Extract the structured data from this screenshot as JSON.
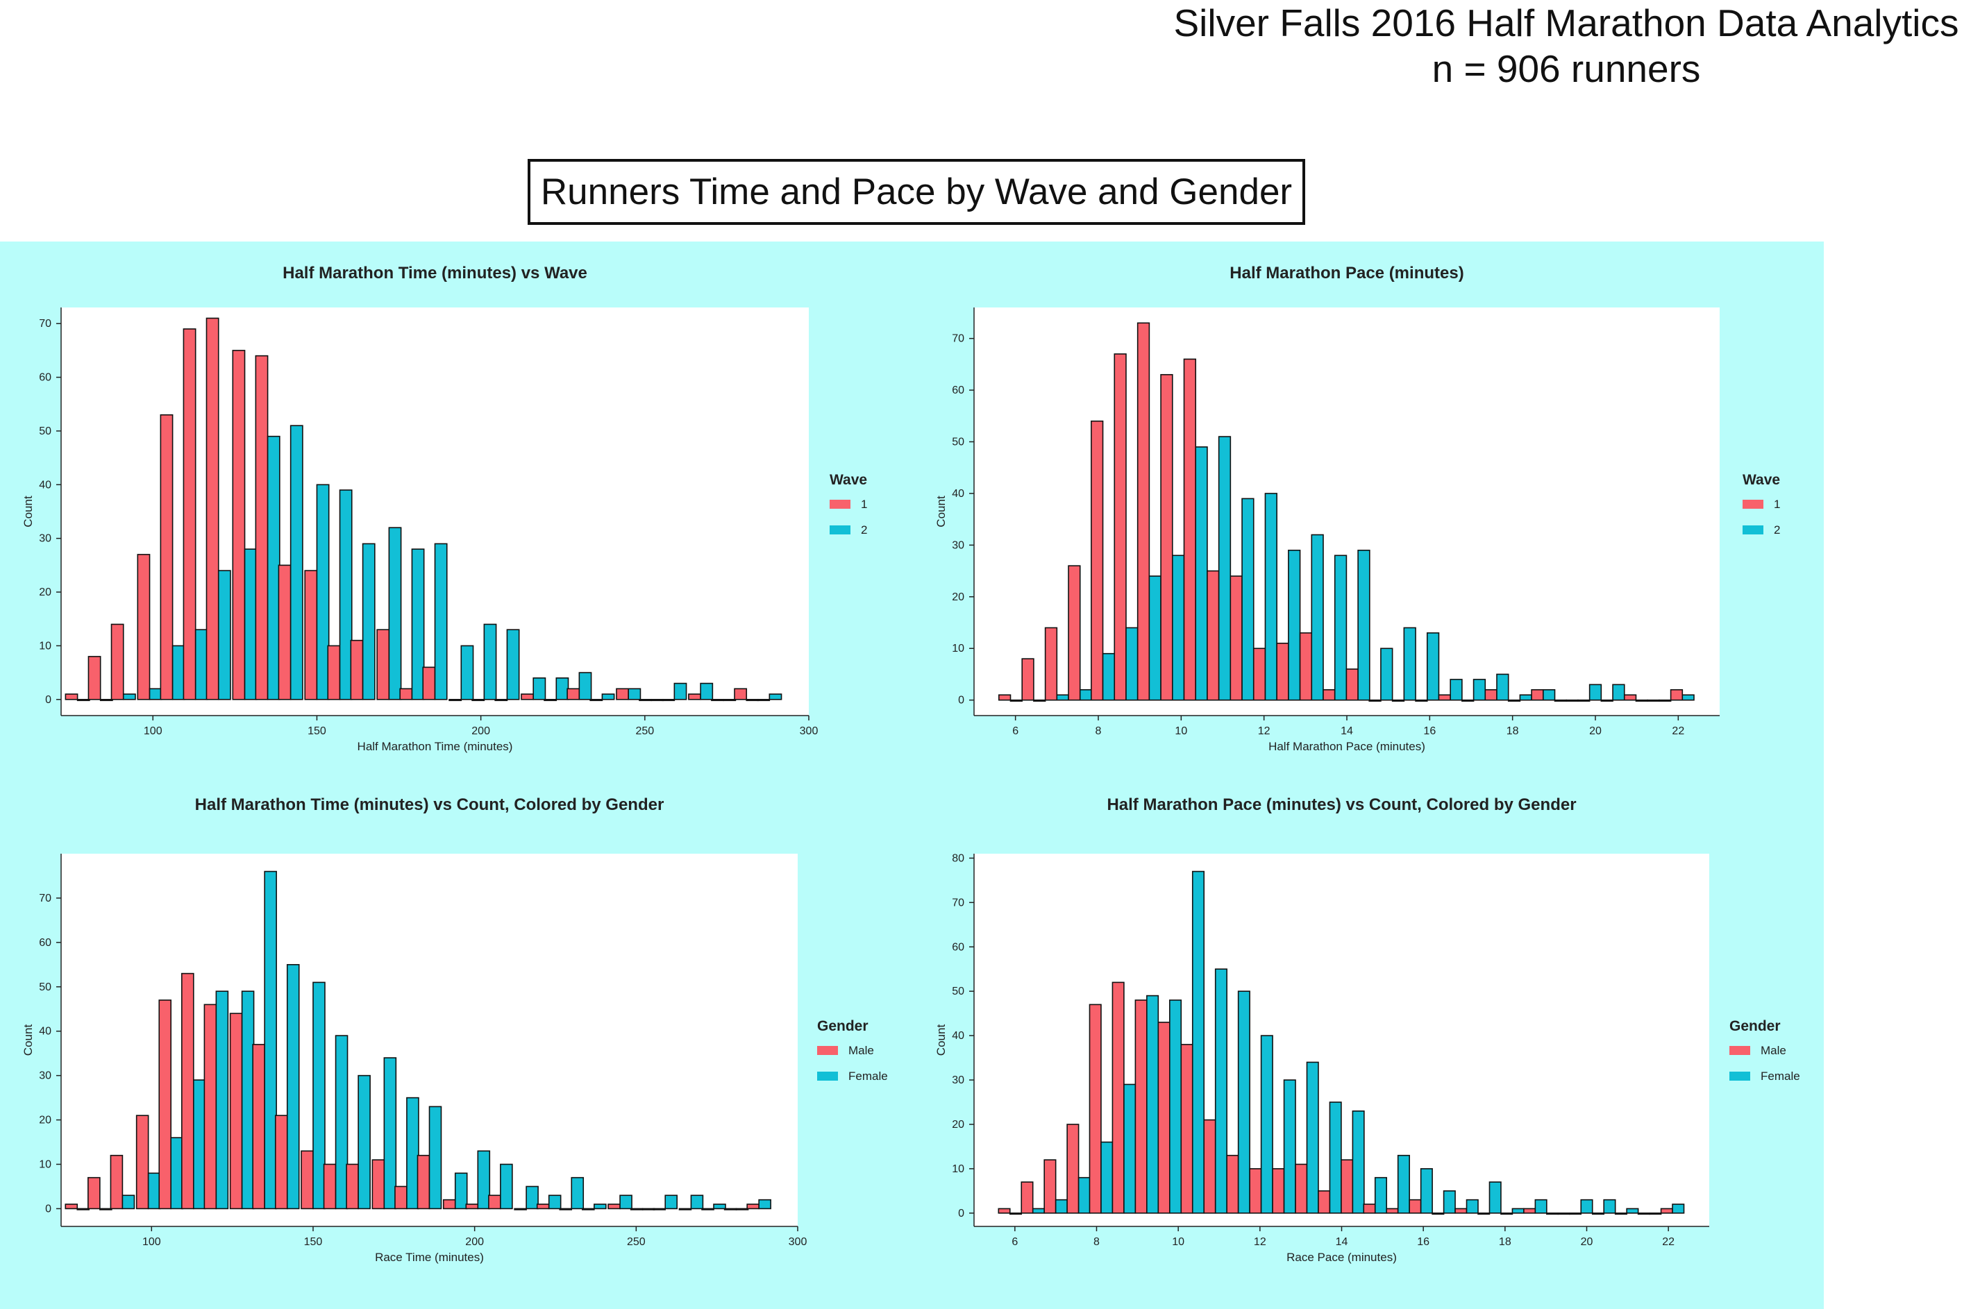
{
  "header": {
    "title": "Silver Falls 2016 Half Marathon Data Analytics",
    "subtitle": "n = 906 runners"
  },
  "section_title": "Runners Time and Pace by Wave and Gender",
  "colors": {
    "series1": "#f8616b",
    "series2": "#12bfd6",
    "panel": "#b9fdfa"
  },
  "chart_data": [
    {
      "type": "bar",
      "title": "Half Marathon Time (minutes) vs Wave",
      "xlabel": "Half Marathon Time (minutes)",
      "ylabel": "Count",
      "xlim": [
        72,
        300
      ],
      "ylim": [
        -3,
        73
      ],
      "xticks": [
        100,
        150,
        200,
        250,
        300
      ],
      "yticks": [
        0,
        10,
        20,
        30,
        40,
        50,
        60,
        70
      ],
      "bin_width": 7.3,
      "x": [
        77,
        84,
        91,
        99,
        106,
        113,
        120,
        128,
        135,
        142,
        150,
        157,
        164,
        172,
        179,
        186,
        194,
        201,
        208,
        216,
        223,
        230,
        237,
        245,
        252,
        259,
        267,
        274,
        281,
        288
      ],
      "legend_title": "Wave",
      "legend_position": "right",
      "grid": false,
      "series": [
        {
          "name": "1",
          "values": [
            1,
            8,
            14,
            27,
            53,
            69,
            71,
            65,
            64,
            25,
            24,
            10,
            11,
            13,
            2,
            6,
            0,
            0,
            0,
            1,
            0,
            2,
            0,
            2,
            0,
            0,
            1,
            0,
            2,
            0
          ]
        },
        {
          "name": "2",
          "values": [
            0,
            0,
            1,
            2,
            10,
            13,
            24,
            28,
            49,
            51,
            40,
            39,
            29,
            32,
            28,
            29,
            10,
            14,
            13,
            4,
            4,
            5,
            1,
            2,
            0,
            3,
            3,
            0,
            0,
            1
          ]
        }
      ]
    },
    {
      "type": "bar",
      "title": "Half Marathon Pace (minutes)",
      "xlabel": "Half Marathon Pace (minutes)",
      "ylabel": "Count",
      "xlim": [
        5,
        23
      ],
      "ylim": [
        -3,
        76
      ],
      "xticks": [
        6,
        8,
        10,
        12,
        14,
        16,
        18,
        20,
        22
      ],
      "yticks": [
        0,
        10,
        20,
        30,
        40,
        50,
        60,
        70
      ],
      "bin_width": 0.56,
      "x": [
        5.88,
        6.44,
        7.0,
        7.56,
        8.11,
        8.67,
        9.23,
        9.79,
        10.35,
        10.91,
        11.47,
        12.03,
        12.59,
        13.15,
        13.71,
        14.27,
        14.82,
        15.38,
        15.94,
        16.5,
        17.06,
        17.62,
        18.18,
        18.74,
        19.3,
        19.86,
        20.42,
        20.98,
        21.54,
        22.1
      ],
      "legend_title": "Wave",
      "legend_position": "right",
      "grid": false,
      "series": [
        {
          "name": "1",
          "values": [
            1,
            8,
            14,
            26,
            54,
            67,
            73,
            63,
            66,
            25,
            24,
            10,
            11,
            13,
            2,
            6,
            0,
            0,
            0,
            1,
            0,
            2,
            0,
            2,
            0,
            0,
            0,
            1,
            0,
            2
          ]
        },
        {
          "name": "2",
          "values": [
            0,
            0,
            1,
            2,
            9,
            14,
            24,
            28,
            49,
            51,
            39,
            40,
            29,
            32,
            28,
            29,
            10,
            14,
            13,
            4,
            4,
            5,
            1,
            2,
            0,
            3,
            3,
            0,
            0,
            1
          ]
        }
      ]
    },
    {
      "type": "bar",
      "title": "Half Marathon Time (minutes) vs Count, Colored by Gender",
      "xlabel": "Race Time (minutes)",
      "ylabel": "Count",
      "xlim": [
        72,
        300
      ],
      "ylim": [
        -4,
        80
      ],
      "xticks": [
        100,
        150,
        200,
        250,
        300
      ],
      "yticks": [
        0,
        10,
        20,
        30,
        40,
        50,
        60,
        70
      ],
      "bin_width": 7.3,
      "x": [
        77,
        84,
        91,
        99,
        106,
        113,
        120,
        128,
        135,
        142,
        150,
        157,
        164,
        172,
        179,
        186,
        194,
        201,
        208,
        216,
        223,
        230,
        237,
        245,
        252,
        259,
        267,
        274,
        281,
        288
      ],
      "legend_title": "Gender",
      "legend_position": "right",
      "grid": false,
      "series": [
        {
          "name": "Male",
          "values": [
            1,
            7,
            12,
            21,
            47,
            53,
            46,
            44,
            37,
            21,
            13,
            10,
            10,
            11,
            5,
            12,
            2,
            1,
            3,
            0,
            1,
            0,
            0,
            1,
            0,
            0,
            0,
            0,
            0,
            1
          ]
        },
        {
          "name": "Female",
          "values": [
            0,
            0,
            3,
            8,
            16,
            29,
            49,
            49,
            76,
            55,
            51,
            39,
            30,
            34,
            25,
            23,
            8,
            13,
            10,
            5,
            3,
            7,
            1,
            3,
            0,
            3,
            3,
            1,
            0,
            2
          ]
        }
      ]
    },
    {
      "type": "bar",
      "title": "Half Marathon Pace (minutes) vs Count, Colored by Gender",
      "xlabel": "Race Pace (minutes)",
      "ylabel": "Count",
      "xlim": [
        5,
        23
      ],
      "ylim": [
        -3,
        81
      ],
      "xticks": [
        6,
        8,
        10,
        12,
        14,
        16,
        18,
        20,
        22
      ],
      "yticks": [
        0,
        10,
        20,
        30,
        40,
        50,
        60,
        70,
        80
      ],
      "bin_width": 0.56,
      "x": [
        5.88,
        6.44,
        7.0,
        7.56,
        8.11,
        8.67,
        9.23,
        9.79,
        10.35,
        10.91,
        11.47,
        12.03,
        12.59,
        13.15,
        13.71,
        14.27,
        14.82,
        15.38,
        15.94,
        16.5,
        17.06,
        17.62,
        18.18,
        18.74,
        19.3,
        19.86,
        20.42,
        20.98,
        21.54,
        22.1
      ],
      "legend_title": "Gender",
      "legend_position": "right",
      "grid": false,
      "series": [
        {
          "name": "Male",
          "values": [
            1,
            7,
            12,
            20,
            47,
            52,
            48,
            43,
            38,
            21,
            13,
            10,
            10,
            11,
            5,
            12,
            2,
            1,
            3,
            0,
            1,
            0,
            0,
            1,
            0,
            0,
            0,
            0,
            0,
            1
          ]
        },
        {
          "name": "Female",
          "values": [
            0,
            1,
            3,
            8,
            16,
            29,
            49,
            48,
            77,
            55,
            50,
            40,
            30,
            34,
            25,
            23,
            8,
            13,
            10,
            5,
            3,
            7,
            1,
            3,
            0,
            3,
            3,
            1,
            0,
            2
          ]
        }
      ]
    }
  ]
}
